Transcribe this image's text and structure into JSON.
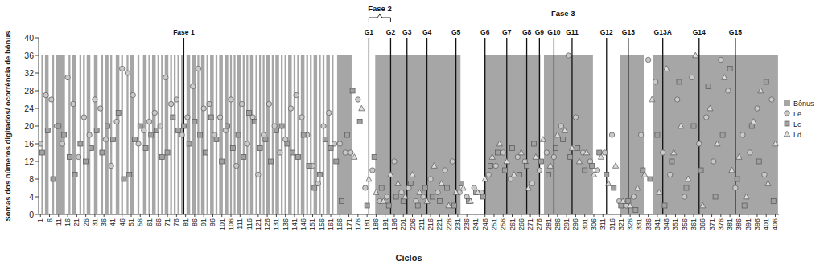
{
  "chart_data": {
    "type": "scatter",
    "x_label": "Ciclos",
    "y_label": "Somas dos números digitados/ ocorrência de bônus",
    "xlim": [
      0,
      408
    ],
    "ylim": [
      0,
      40
    ],
    "xticks": [
      1,
      6,
      11,
      16,
      21,
      26,
      31,
      36,
      41,
      46,
      51,
      56,
      61,
      66,
      71,
      76,
      81,
      86,
      91,
      96,
      101,
      106,
      111,
      116,
      121,
      126,
      131,
      136,
      141,
      146,
      151,
      156,
      161,
      166,
      171,
      176,
      181,
      186,
      191,
      196,
      201,
      206,
      211,
      216,
      221,
      226,
      231,
      236,
      241,
      246,
      251,
      256,
      261,
      266,
      271,
      276,
      281,
      286,
      291,
      296,
      301,
      306,
      311,
      316,
      321,
      326,
      331,
      336,
      341,
      346,
      351,
      356,
      361,
      366,
      371,
      376,
      381,
      386,
      391,
      396,
      401,
      406
    ],
    "yticks": [
      0,
      4,
      8,
      12,
      16,
      20,
      24,
      28,
      32,
      36,
      40
    ],
    "grid": false,
    "legend": "right",
    "series": [
      {
        "name": "Bônus",
        "type": "bar",
        "color": "#a6a6a6",
        "x": [
          2,
          4,
          8,
          10,
          17,
          19,
          23,
          25,
          27,
          31,
          35,
          37,
          40,
          43,
          46,
          49,
          51,
          55,
          58,
          61,
          63,
          66,
          68,
          70,
          73,
          75,
          77,
          79,
          82,
          85,
          88,
          90,
          93,
          95,
          98,
          100,
          103,
          106,
          108,
          110,
          113,
          115,
          117,
          120,
          122,
          124,
          126,
          129,
          131,
          134,
          136,
          138,
          141,
          143,
          145,
          148,
          150,
          152,
          155,
          157,
          159,
          162,
          165,
          186,
          246,
          279,
          321,
          339
        ],
        "x_end": [
          2,
          5,
          8,
          14,
          17,
          20,
          23,
          25,
          28,
          32,
          35,
          38,
          40,
          44,
          46,
          49,
          52,
          55,
          59,
          61,
          64,
          66,
          68,
          71,
          73,
          75,
          77,
          79,
          83,
          86,
          88,
          91,
          93,
          96,
          98,
          101,
          104,
          106,
          108,
          111,
          113,
          115,
          118,
          120,
          122,
          124,
          127,
          129,
          132,
          134,
          136,
          139,
          141,
          143,
          146,
          148,
          150,
          153,
          155,
          157,
          160,
          162,
          172,
          232,
          276,
          305,
          333,
          407
        ],
        "values": [
          36,
          36,
          36,
          36,
          36,
          36,
          36,
          36,
          36,
          36,
          36,
          36,
          36,
          36,
          36,
          36,
          36,
          36,
          36,
          36,
          36,
          36,
          36,
          36,
          36,
          36,
          36,
          36,
          36,
          36,
          36,
          36,
          36,
          36,
          36,
          36,
          36,
          36,
          36,
          36,
          36,
          36,
          36,
          36,
          36,
          36,
          36,
          36,
          36,
          36,
          36,
          36,
          36,
          36,
          36,
          36,
          36,
          36,
          36,
          36,
          36,
          36,
          36,
          36,
          36,
          36,
          36,
          36
        ]
      },
      {
        "name": "Le",
        "type": "scatter",
        "marker": "circle",
        "color": "#c9c9c9",
        "x": [
          1,
          4,
          7,
          10,
          13,
          16,
          19,
          22,
          25,
          28,
          31,
          34,
          37,
          40,
          43,
          46,
          49,
          52,
          55,
          58,
          61,
          64,
          67,
          70,
          73,
          76,
          79,
          82,
          85,
          88,
          91,
          94,
          97,
          100,
          103,
          106,
          109,
          112,
          115,
          118,
          121,
          124,
          127,
          130,
          133,
          136,
          139,
          142,
          145,
          148,
          151,
          154,
          157,
          160,
          163,
          166,
          169,
          172,
          176,
          180,
          184,
          188,
          192,
          196,
          200,
          204,
          208,
          212,
          216,
          220,
          224,
          228,
          232,
          236,
          240,
          244,
          248,
          252,
          256,
          260,
          264,
          268,
          272,
          276,
          280,
          284,
          288,
          292,
          296,
          300,
          304,
          308,
          312,
          316,
          320,
          324,
          328,
          332,
          336,
          340,
          344,
          348,
          352,
          356,
          360,
          364,
          368,
          372,
          376,
          380,
          384,
          388,
          392,
          396,
          400,
          404
        ],
        "values": [
          16,
          27,
          26,
          20,
          16,
          31,
          25,
          13,
          22,
          18,
          26,
          24,
          17,
          11,
          21,
          33,
          32,
          27,
          16,
          19,
          21,
          23,
          20,
          31,
          25,
          26,
          18,
          22,
          29,
          33,
          24,
          25,
          18,
          22,
          19,
          26,
          11,
          25,
          16,
          22,
          9,
          18,
          25,
          20,
          14,
          17,
          24,
          27,
          22,
          18,
          11,
          7,
          20,
          23,
          16,
          16,
          14,
          14,
          26,
          6,
          10,
          3,
          4,
          12,
          5,
          6,
          3,
          4,
          8,
          5,
          10,
          12,
          5,
          4,
          6,
          5,
          9,
          11,
          14,
          8,
          13,
          12,
          7,
          10,
          14,
          13,
          20,
          36,
          22,
          14,
          12,
          10,
          14,
          18,
          3,
          2,
          4,
          18,
          35,
          30,
          14,
          9,
          26,
          4,
          31,
          16,
          22,
          12,
          35,
          28,
          6,
          18,
          14,
          24,
          9,
          26
        ]
      },
      {
        "name": "Lc",
        "type": "scatter",
        "marker": "square",
        "color": "#a0a0a0",
        "x": [
          2,
          5,
          8,
          11,
          14,
          17,
          20,
          23,
          26,
          29,
          32,
          35,
          38,
          41,
          44,
          47,
          50,
          53,
          56,
          59,
          62,
          65,
          68,
          71,
          74,
          77,
          80,
          83,
          86,
          89,
          92,
          95,
          98,
          101,
          104,
          107,
          110,
          113,
          116,
          119,
          122,
          125,
          128,
          131,
          134,
          137,
          140,
          143,
          146,
          149,
          152,
          155,
          158,
          161,
          164,
          167,
          170,
          173,
          177,
          181,
          185,
          189,
          193,
          197,
          201,
          205,
          209,
          213,
          217,
          221,
          225,
          229,
          233,
          237,
          241,
          245,
          249,
          253,
          257,
          261,
          265,
          269,
          273,
          277,
          281,
          285,
          289,
          293,
          297,
          301,
          305,
          309,
          313,
          317,
          321,
          325,
          329,
          333,
          337,
          341,
          345,
          349,
          353,
          357,
          361,
          365,
          369,
          373,
          377,
          381,
          385,
          389,
          393,
          397,
          401,
          405
        ],
        "values": [
          14,
          19,
          8,
          20,
          18,
          13,
          9,
          16,
          12,
          15,
          19,
          14,
          20,
          17,
          23,
          8,
          9,
          17,
          20,
          15,
          18,
          19,
          13,
          14,
          22,
          19,
          20,
          16,
          21,
          18,
          14,
          22,
          17,
          12,
          20,
          15,
          18,
          13,
          23,
          21,
          15,
          17,
          12,
          19,
          20,
          16,
          14,
          13,
          18,
          11,
          6,
          9,
          17,
          15,
          12,
          3,
          18,
          28,
          21,
          2,
          13,
          6,
          2,
          4,
          3,
          7,
          2,
          6,
          4,
          3,
          6,
          2,
          7,
          3,
          5,
          4,
          11,
          14,
          10,
          15,
          9,
          11,
          16,
          12,
          9,
          15,
          17,
          13,
          15,
          10,
          11,
          14,
          9,
          6,
          2,
          3,
          1,
          10,
          8,
          18,
          2,
          12,
          30,
          6,
          20,
          10,
          29,
          4,
          18,
          33,
          8,
          2,
          20,
          12,
          30,
          3
        ]
      },
      {
        "name": "Ld",
        "type": "scatter",
        "marker": "triangle",
        "color": "#dedede",
        "x": [
          174,
          178,
          182,
          186,
          190,
          194,
          198,
          202,
          206,
          210,
          214,
          218,
          222,
          226,
          230,
          234,
          238,
          242,
          246,
          250,
          254,
          258,
          262,
          266,
          270,
          274,
          278,
          282,
          286,
          290,
          294,
          298,
          302,
          306,
          310,
          314,
          318,
          322,
          326,
          330,
          334,
          338,
          342,
          346,
          350,
          354,
          358,
          362,
          366,
          370,
          374,
          378,
          382,
          386,
          390,
          394,
          398,
          402,
          406
        ],
        "values": [
          13,
          24,
          8,
          5,
          3,
          9,
          7,
          4,
          9,
          5,
          3,
          11,
          7,
          2,
          5,
          6,
          3,
          5,
          8,
          13,
          16,
          12,
          9,
          14,
          6,
          13,
          17,
          11,
          18,
          19,
          15,
          12,
          14,
          9,
          13,
          7,
          11,
          3,
          2,
          6,
          9,
          26,
          5,
          33,
          14,
          20,
          8,
          36,
          2,
          24,
          16,
          31,
          10,
          13,
          4,
          21,
          28,
          7,
          16
        ]
      }
    ],
    "phase_lines": [
      {
        "label": "Fase 1",
        "x": 80
      },
      {
        "label": "G1",
        "x": 182
      },
      {
        "label": "G2",
        "x": 194
      },
      {
        "label": "G3",
        "x": 203
      },
      {
        "label": "G4",
        "x": 214
      },
      {
        "label": "G5",
        "x": 230
      },
      {
        "label": "G6",
        "x": 246
      },
      {
        "label": "G7",
        "x": 258
      },
      {
        "label": "G8",
        "x": 269
      },
      {
        "label": "G9",
        "x": 276
      },
      {
        "label": "G10",
        "x": 284
      },
      {
        "label": "G11",
        "x": 294
      },
      {
        "label": "G12",
        "x": 313
      },
      {
        "label": "G13",
        "x": 325
      },
      {
        "label": "G13A",
        "x": 344
      },
      {
        "label": "G14",
        "x": 364
      },
      {
        "label": "G15",
        "x": 384
      }
    ],
    "annotations": [
      {
        "text": "Fase 2",
        "x": [
          182,
          194
        ]
      },
      {
        "text": "Fase 3",
        "x": 289
      }
    ]
  }
}
